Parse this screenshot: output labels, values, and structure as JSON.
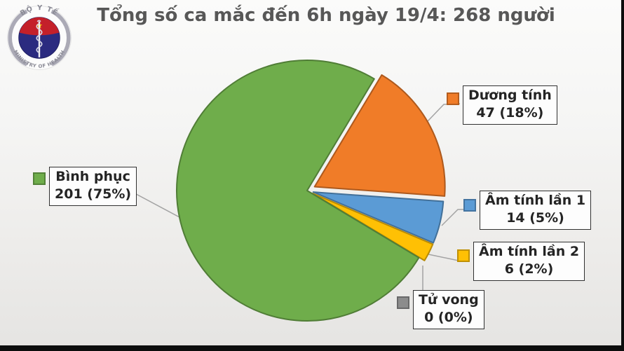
{
  "title": "Tổng số ca mắc đến 6h ngày 19/4: 268 người",
  "logo": {
    "top_text": "BỘ Y TẾ",
    "bottom_text": "MINISTRY OF HEALTH"
  },
  "chart_data": {
    "type": "pie",
    "title": "Tổng số ca mắc đến 6h ngày 19/4: 268 người",
    "total": 268,
    "start_angle_deg": 59,
    "direction": "clockwise",
    "legend_position": "callout-labels",
    "grid": false,
    "slices": [
      {
        "label": "Dương tính",
        "value": 47,
        "percent": 18,
        "display": "47 (18%)",
        "color": "#F07C28"
      },
      {
        "label": "Âm tính lần 1",
        "value": 14,
        "percent": 5,
        "display": "14 (5%)",
        "color": "#5B9BD5"
      },
      {
        "label": "Âm tính lần 2",
        "value": 6,
        "percent": 2,
        "display": "6 (2%)",
        "color": "#FFC004"
      },
      {
        "label": "Tử vong",
        "value": 0,
        "percent": 0,
        "display": "0 (0%)",
        "color": "#8C8C8C"
      },
      {
        "label": "Bình phục",
        "value": 201,
        "percent": 75,
        "display": "201 (75%)",
        "color": "#6FAD4B"
      }
    ],
    "colors": {
      "leader_line": "#A3A3A3",
      "title_text": "#575757",
      "label_text": "#242424",
      "label_box_border": "#303030",
      "label_box_bg": "#FDFDFD"
    }
  }
}
